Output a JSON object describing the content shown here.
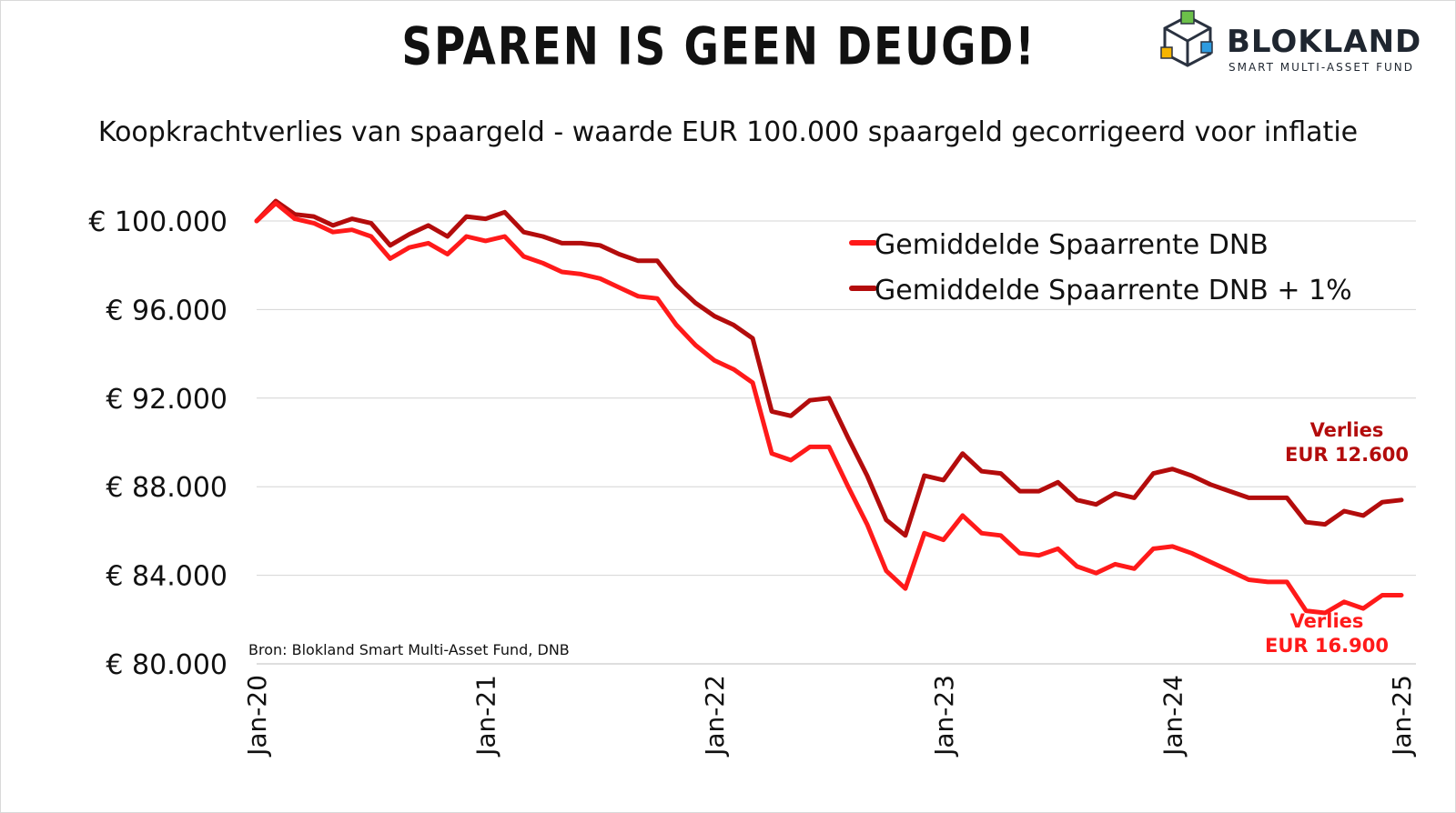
{
  "title": "SPAREN IS GEEN DEUGD!",
  "logo": {
    "name": "BLOKLAND",
    "tagline": "SMART MULTI-ASSET FUND",
    "icon": "cube-icon"
  },
  "chart_data": {
    "type": "line",
    "title": "SPAREN IS GEEN DEUGD!",
    "subtitle": "Koopkrachtverlies van spaargeld - waarde EUR 100.000 spaargeld gecorrigeerd voor inflatie",
    "xlabel": "",
    "ylabel": "",
    "ylim": [
      80000,
      101500
    ],
    "yticks": [
      100000,
      96000,
      92000,
      88000,
      84000,
      80000
    ],
    "ytick_labels": [
      "€ 100.000",
      "€ 96.000",
      "€ 92.000",
      "€ 88.000",
      "€ 84.000",
      "€ 80.000"
    ],
    "xlim": [
      0,
      60
    ],
    "xticks": [
      0,
      12,
      24,
      36,
      48,
      60
    ],
    "xtick_labels": [
      "Jan-20",
      "Jan-21",
      "Jan-22",
      "Jan-23",
      "Jan-24",
      "Jan-25"
    ],
    "grid": true,
    "legend_position": "top-right",
    "series": [
      {
        "name": "Gemiddelde Spaarrente DNB",
        "color": "#ff1a1a",
        "x": [
          0,
          1,
          2,
          3,
          4,
          5,
          6,
          7,
          8,
          9,
          10,
          11,
          12,
          13,
          14,
          15,
          16,
          17,
          18,
          19,
          20,
          21,
          22,
          23,
          24,
          25,
          26,
          27,
          28,
          29,
          30,
          31,
          32,
          33,
          34,
          35,
          36,
          37,
          38,
          39,
          40,
          41,
          42,
          43,
          44,
          45,
          46,
          47,
          48,
          49,
          50,
          51,
          52,
          53,
          54,
          55,
          56,
          57,
          58,
          59,
          60
        ],
        "values": [
          100000,
          100800,
          100100,
          99900,
          99500,
          99600,
          99300,
          98300,
          98800,
          99000,
          98500,
          99300,
          99100,
          99300,
          98400,
          98100,
          97700,
          97600,
          97400,
          97000,
          96600,
          96500,
          95300,
          94400,
          93700,
          93300,
          92700,
          89500,
          89200,
          89800,
          89800,
          88000,
          86300,
          84200,
          83400,
          85900,
          85600,
          86700,
          85900,
          85800,
          85000,
          84900,
          85200,
          84400,
          84100,
          84500,
          84300,
          85200,
          85300,
          85000,
          84600,
          84200,
          83800,
          83700,
          83700,
          82400,
          82300,
          82800,
          82500,
          83100,
          83100
        ]
      },
      {
        "name": "Gemiddelde Spaarrente DNB + 1%",
        "color": "#b30c0c",
        "x": [
          0,
          1,
          2,
          3,
          4,
          5,
          6,
          7,
          8,
          9,
          10,
          11,
          12,
          13,
          14,
          15,
          16,
          17,
          18,
          19,
          20,
          21,
          22,
          23,
          24,
          25,
          26,
          27,
          28,
          29,
          30,
          31,
          32,
          33,
          34,
          35,
          36,
          37,
          38,
          39,
          40,
          41,
          42,
          43,
          44,
          45,
          46,
          47,
          48,
          49,
          50,
          51,
          52,
          53,
          54,
          55,
          56,
          57,
          58,
          59,
          60
        ],
        "values": [
          100000,
          100900,
          100300,
          100200,
          99800,
          100100,
          99900,
          98900,
          99400,
          99800,
          99300,
          100200,
          100100,
          100400,
          99500,
          99300,
          99000,
          99000,
          98900,
          98500,
          98200,
          98200,
          97100,
          96300,
          95700,
          95300,
          94700,
          91400,
          91200,
          91900,
          92000,
          90200,
          88500,
          86500,
          85800,
          88500,
          88300,
          89500,
          88700,
          88600,
          87800,
          87800,
          88200,
          87400,
          87200,
          87700,
          87500,
          88600,
          88800,
          88500,
          88100,
          87800,
          87500,
          87500,
          87500,
          86400,
          86300,
          86900,
          86700,
          87300,
          87400
        ]
      }
    ],
    "annotations": [
      {
        "text": [
          "Verlies",
          "EUR 12.600"
        ],
        "color": "#b30c0c"
      },
      {
        "text": [
          "Verlies",
          "EUR 16.900"
        ],
        "color": "#ff1a1a"
      }
    ],
    "source": "Bron: Blokland Smart Multi-Asset Fund, DNB"
  }
}
